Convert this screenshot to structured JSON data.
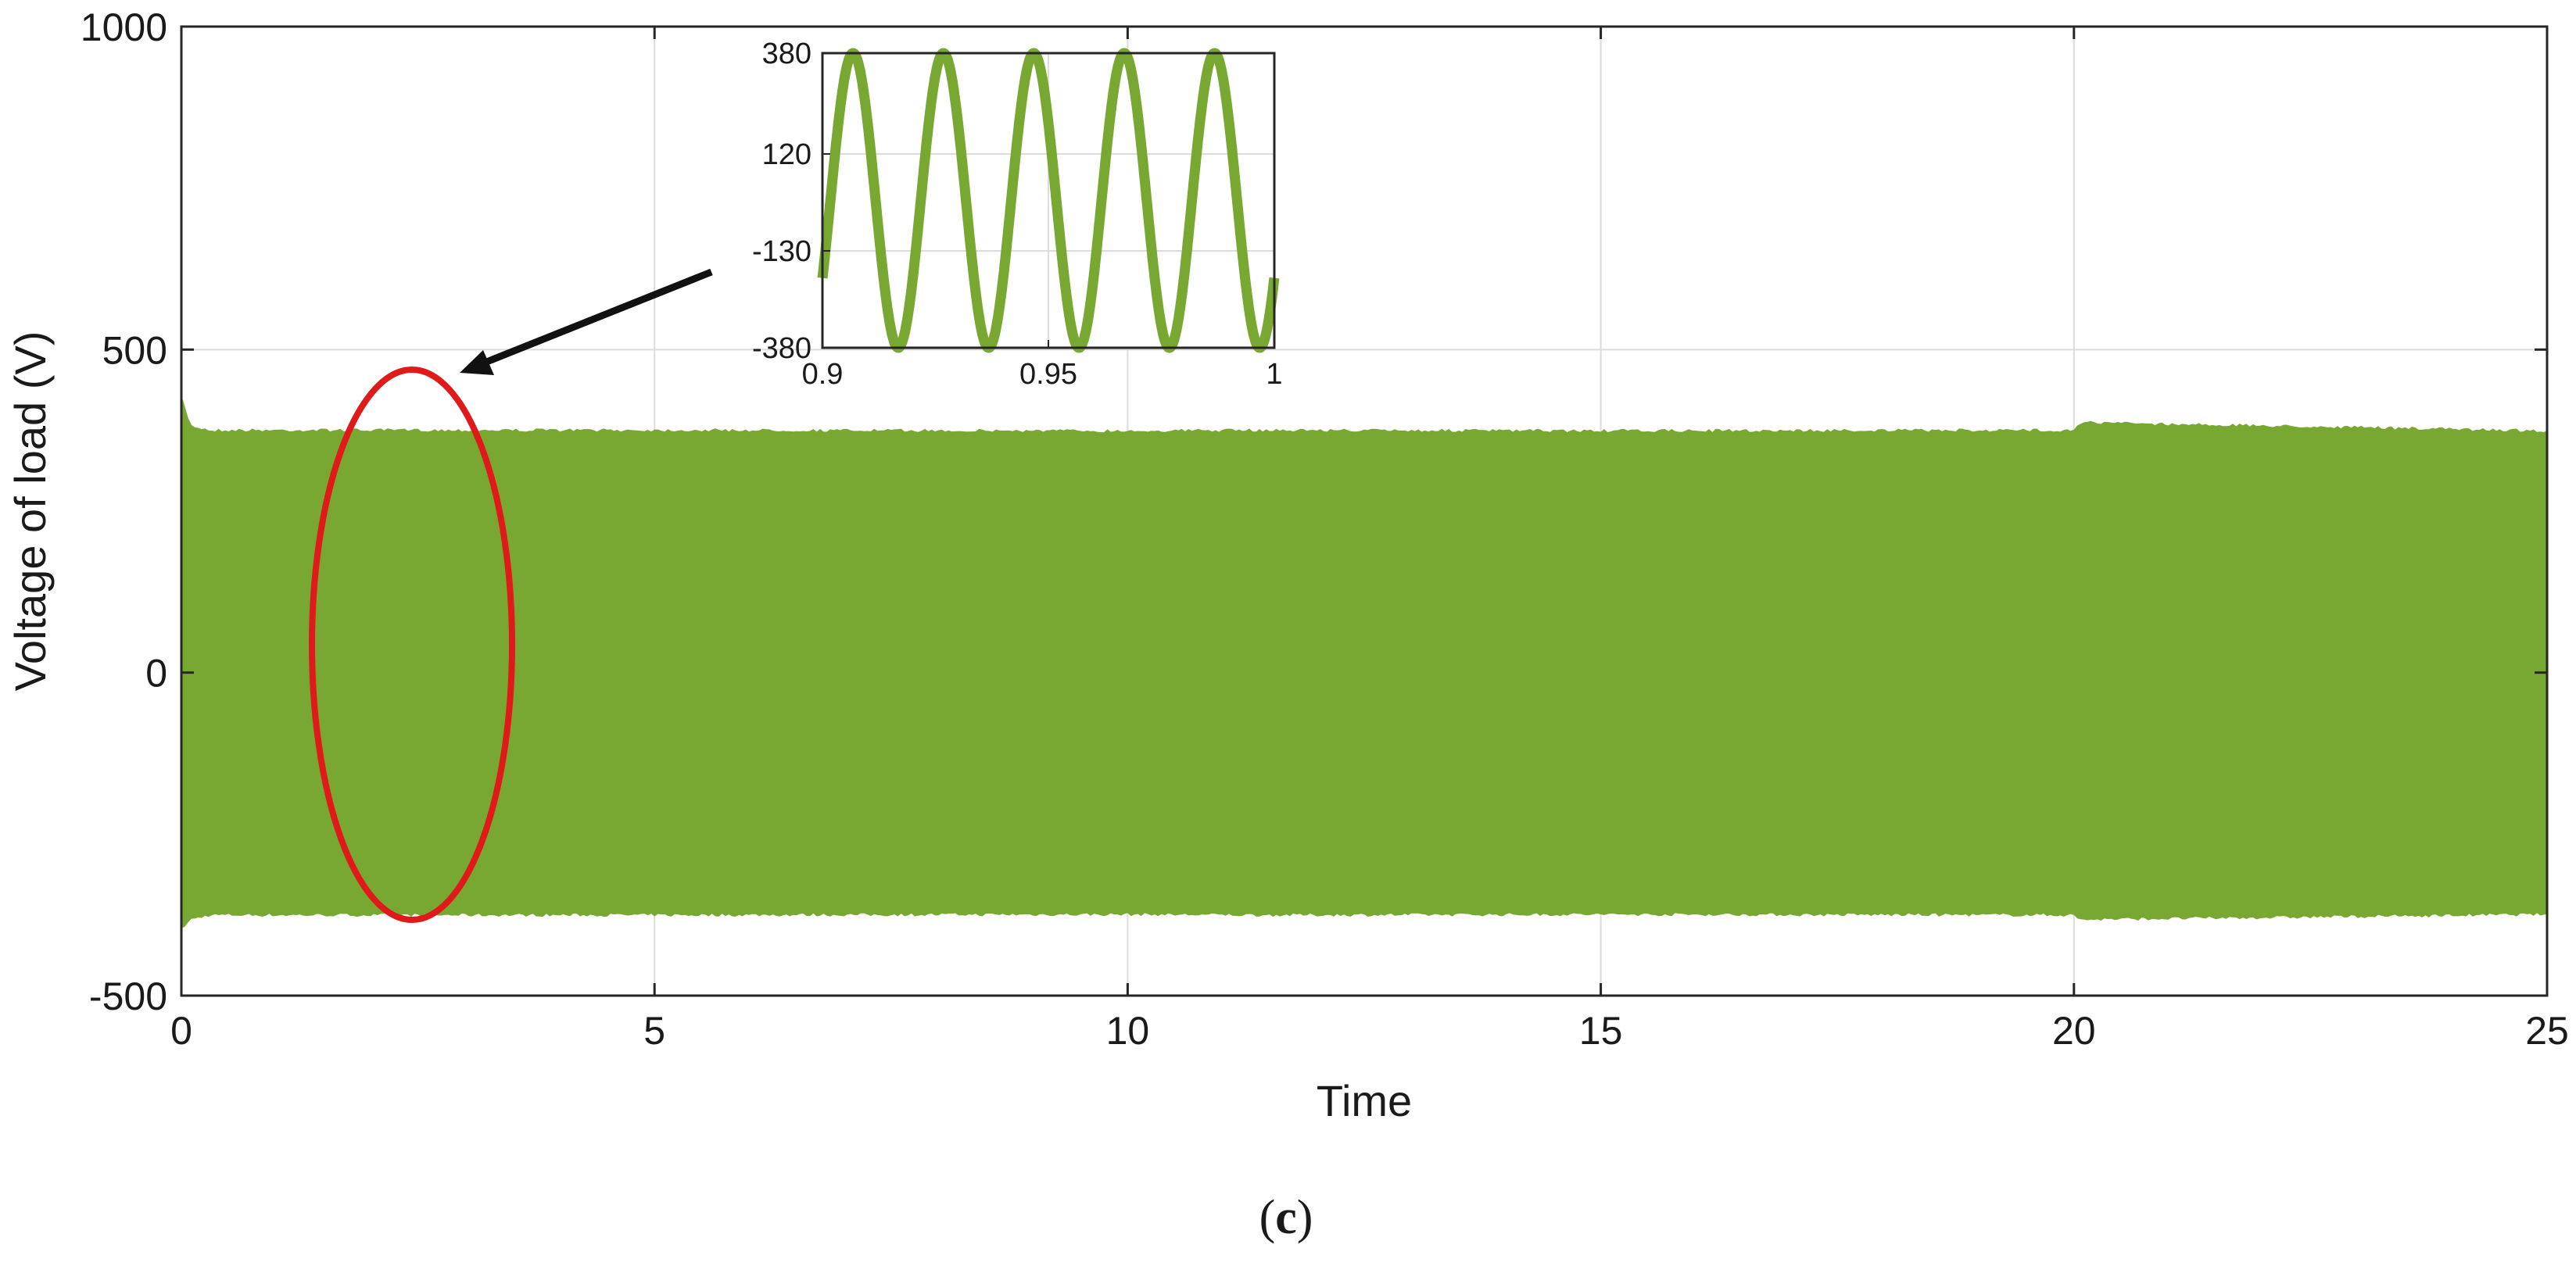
{
  "chart_data": [
    {
      "type": "area",
      "xlabel": "Time",
      "ylabel": "Voltage of load (V)",
      "xlim": [
        0,
        25
      ],
      "ylim": [
        -500,
        1000
      ],
      "xticks": [
        0,
        5,
        10,
        15,
        20,
        25
      ],
      "yticks": [
        -500,
        0,
        500,
        1000
      ],
      "grid": true,
      "series": [
        {
          "color": "#78a832",
          "envelope_x": [
            0,
            0.1,
            0.3,
            5,
            10,
            11.5,
            15,
            20,
            20.05,
            25
          ],
          "upper": [
            430,
            385,
            378,
            378,
            377,
            378,
            377,
            378,
            390,
            377
          ],
          "lower": [
            -400,
            -385,
            -378,
            -378,
            -377,
            -378,
            -377,
            -378,
            -385,
            -377
          ]
        }
      ],
      "annotation": "red ellipse near t = 2.4 highlighting the zoomed region, with an arrow to the inset"
    },
    {
      "type": "line",
      "role": "inset",
      "xlim": [
        0.9,
        1
      ],
      "ylim": [
        -380,
        380
      ],
      "xticks": [
        "0.9",
        "0.95",
        "1"
      ],
      "yticks": [
        "380",
        "120",
        "-130",
        "-380"
      ],
      "grid": true,
      "series": [
        {
          "color": "#78a832",
          "amplitude": 380,
          "frequency_hz": 50,
          "x_start": 0.9,
          "x_end": 1,
          "y_start": -200
        }
      ]
    }
  ],
  "panel_label": {
    "open": "(",
    "letter": "c",
    "close": ")"
  }
}
